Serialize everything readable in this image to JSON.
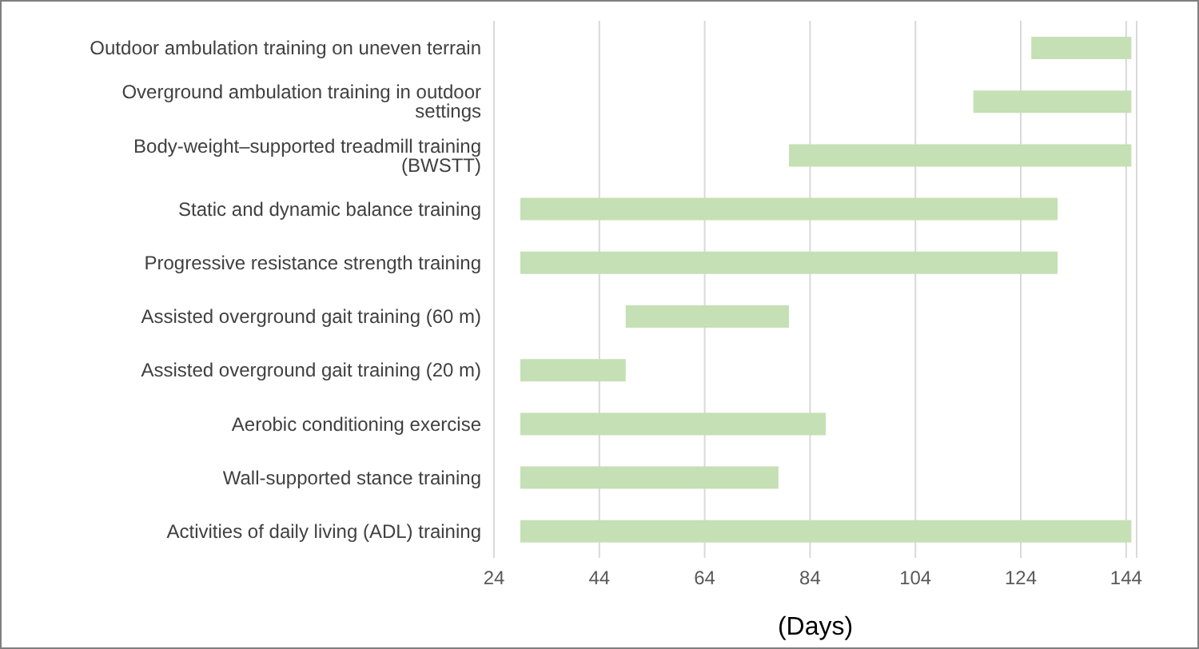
{
  "chart_data": {
    "type": "bar",
    "orientation": "horizontal",
    "xlabel": "(Days)",
    "categories": [
      "Outdoor ambulation training on uneven terrain",
      "Overground ambulation training in outdoor settings",
      "Body-weight–supported treadmill training (BWSTT)",
      "Static and dynamic balance training",
      "Progressive resistance strength training",
      "Assisted overground gait training (60 m)",
      "Assisted overground gait training (20 m)",
      "Aerobic conditioning exercise",
      "Wall-supported stance training",
      "Activities of daily living (ADL) training"
    ],
    "base": [
      126,
      115,
      80,
      29,
      29,
      49,
      29,
      29,
      29,
      29
    ],
    "values": [
      19,
      30,
      65,
      102,
      102,
      31,
      20,
      58,
      49,
      116
    ],
    "color": "#c5e0b4",
    "xlim": [
      24,
      146
    ],
    "xticks": [
      24,
      44,
      64,
      84,
      104,
      124,
      144
    ],
    "grid": "x"
  }
}
